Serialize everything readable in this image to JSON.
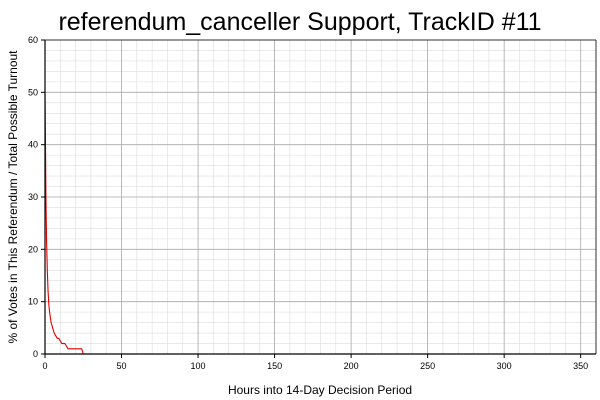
{
  "chart_data": {
    "type": "line",
    "title": "referendum_canceller Support, TrackID #11",
    "xlabel": "Hours into 14-Day Decision Period",
    "ylabel": "% of Votes in This Referendum / Total Possible Turnout",
    "xlim": [
      0,
      360
    ],
    "ylim": [
      0,
      60
    ],
    "x_ticks": [
      0,
      50,
      100,
      150,
      200,
      250,
      300,
      350
    ],
    "y_ticks": [
      0,
      10,
      20,
      30,
      40,
      50,
      60
    ],
    "x_minor_step": 10,
    "y_minor_step": 2,
    "grid": true,
    "colors": {
      "line": "#e00000",
      "major_grid": "#a8a8a8",
      "minor_grid": "#dcdcdc",
      "axis": "#000000"
    },
    "series": [
      {
        "points": [
          [
            0,
            50
          ],
          [
            0.3,
            40
          ],
          [
            0.6,
            30
          ],
          [
            1,
            22
          ],
          [
            1.5,
            16
          ],
          [
            2,
            12
          ],
          [
            2.5,
            9.5
          ],
          [
            3,
            8
          ],
          [
            3.5,
            7
          ],
          [
            4,
            6
          ],
          [
            5,
            5
          ],
          [
            6,
            4
          ],
          [
            7,
            3.5
          ],
          [
            8,
            3
          ],
          [
            9,
            3
          ],
          [
            10,
            2.5
          ],
          [
            11,
            2
          ],
          [
            13,
            2
          ],
          [
            14,
            1.5
          ],
          [
            15,
            1
          ],
          [
            20,
            1
          ],
          [
            24,
            1
          ],
          [
            25,
            0
          ],
          [
            336,
            0
          ]
        ]
      }
    ]
  }
}
